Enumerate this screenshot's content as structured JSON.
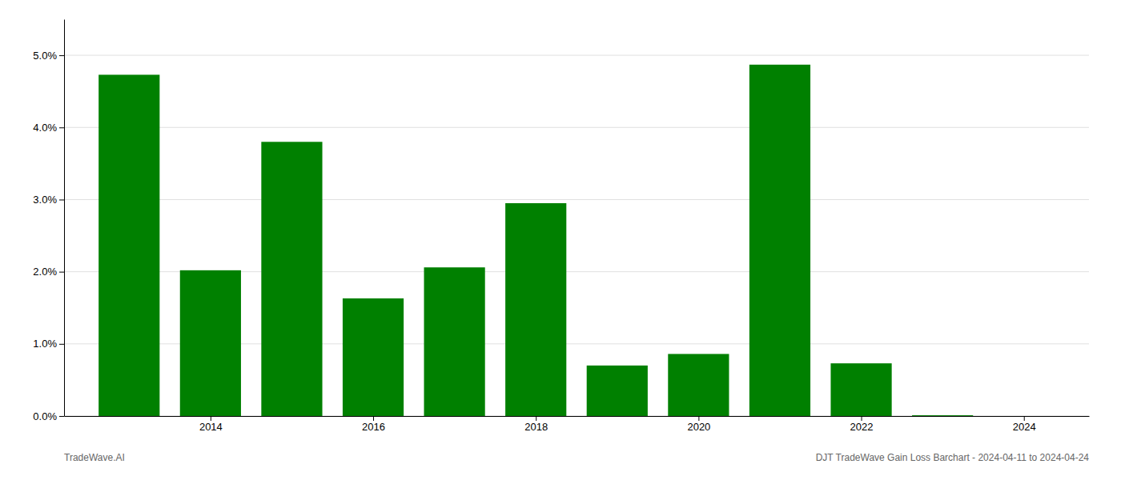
{
  "chart_data": {
    "type": "bar",
    "x": [
      2013,
      2014,
      2015,
      2016,
      2017,
      2018,
      2019,
      2020,
      2021,
      2022,
      2023
    ],
    "values": [
      0.0473,
      0.0202,
      0.038,
      0.0163,
      0.0206,
      0.0295,
      0.007,
      0.0086,
      0.0487,
      0.0073,
      0.0001
    ],
    "color": "#008000",
    "xlim": [
      2012.2,
      2024.8
    ],
    "xticks": [
      2014,
      2016,
      2018,
      2020,
      2022,
      2024
    ],
    "ylim": [
      0,
      0.055
    ],
    "yticks": [
      {
        "value": 0.0,
        "label": "0.0%"
      },
      {
        "value": 0.01,
        "label": "1.0%"
      },
      {
        "value": 0.02,
        "label": "2.0%"
      },
      {
        "value": 0.03,
        "label": "3.0%"
      },
      {
        "value": 0.04,
        "label": "4.0%"
      },
      {
        "value": 0.05,
        "label": "5.0%"
      }
    ],
    "grid": true,
    "annotations": [
      "TradeWave.AI",
      "DJT TradeWave Gain Loss Barchart - 2024-04-11 to 2024-04-24"
    ]
  }
}
